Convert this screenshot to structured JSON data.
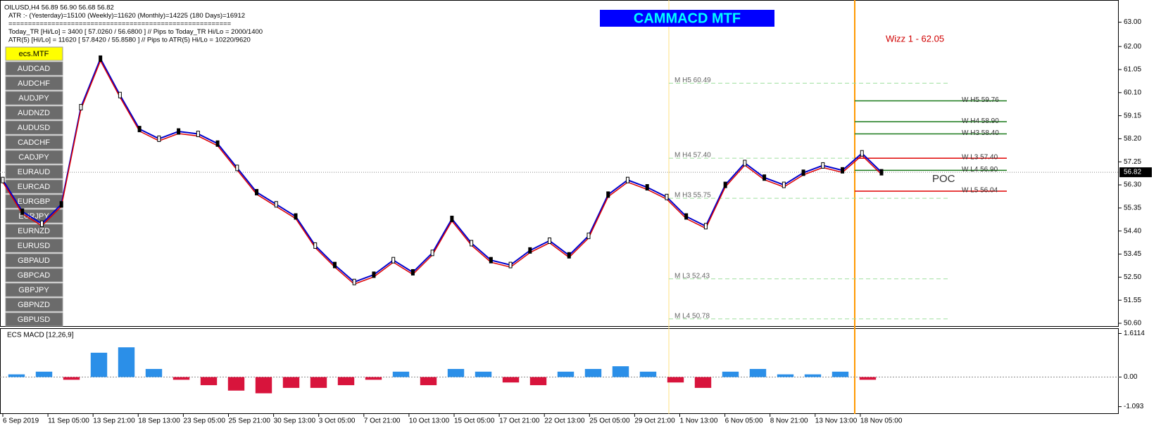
{
  "header": {
    "lines": [
      "OILUSD,H4  56.89 56.90 56.68 56.82",
      "ATR :- (Yesterday)=15100       (Weekly)=11620      (Monthly)=14225      (180 Days)=16912",
      "=========================================================",
      "Today_TR [Hi/Lo] = 3400  [ 57.0260 / 56.6800 ]   //  Pips to Today_TR Hi/Lo  =  2000/1400",
      "ATR(5)      [Hi/Lo] = 11620  [ 57.8420 / 55.8580 ]  //  Pips to ATR(5) Hi/Lo      =  10220/9620"
    ],
    "title": "CAMMACD MTF",
    "annotation": "Wizz 1 - 62.05"
  },
  "symbols": [
    "ecs.MTF",
    "AUDCAD",
    "AUDCHF",
    "AUDJPY",
    "AUDNZD",
    "AUDUSD",
    "CADCHF",
    "CADJPY",
    "EURAUD",
    "EURCAD",
    "EURGBP",
    "EURJPY",
    "EURNZD",
    "EURUSD",
    "GBPAUD",
    "GBPCAD",
    "GBPJPY",
    "GBPNZD",
    "GBPUSD"
  ],
  "price_axis": {
    "ticks": [
      {
        "value": 63.0,
        "label": "63.00"
      },
      {
        "value": 62.0,
        "label": "62.00"
      },
      {
        "value": 61.05,
        "label": "61.05"
      },
      {
        "value": 60.1,
        "label": "60.10"
      },
      {
        "value": 59.15,
        "label": "59.15"
      },
      {
        "value": 58.2,
        "label": "58.20"
      },
      {
        "value": 57.25,
        "label": "57.25"
      },
      {
        "value": 56.3,
        "label": "56.30"
      },
      {
        "value": 55.35,
        "label": "55.35"
      },
      {
        "value": 54.4,
        "label": "54.40"
      },
      {
        "value": 53.45,
        "label": "53.45"
      },
      {
        "value": 52.5,
        "label": "52.50"
      },
      {
        "value": 51.55,
        "label": "51.55"
      },
      {
        "value": 50.6,
        "label": "50.60"
      }
    ],
    "current": 56.82
  },
  "prices": [
    56.5,
    55.2,
    54.7,
    55.5,
    59.5,
    61.5,
    60.0,
    58.6,
    58.2,
    58.5,
    58.4,
    58.0,
    57.0,
    56.0,
    55.5,
    55.0,
    53.8,
    53.0,
    52.3,
    52.6,
    53.2,
    52.7,
    53.5,
    54.9,
    53.9,
    53.2,
    53.0,
    53.6,
    54.0,
    53.4,
    54.2,
    55.9,
    56.5,
    56.2,
    55.8,
    55.0,
    54.6,
    56.3,
    57.2,
    56.6,
    56.3,
    56.8,
    57.1,
    56.9,
    57.6,
    56.82
  ],
  "levels": [
    {
      "label": "M H5 60.49",
      "price": 60.49,
      "kind": "M"
    },
    {
      "label": "M H4 57.40",
      "price": 57.4,
      "kind": "M"
    },
    {
      "label": "M H3 55.75",
      "price": 55.75,
      "kind": "M"
    },
    {
      "label": "M L3 52.43",
      "price": 52.43,
      "kind": "M"
    },
    {
      "label": "M L4 50.78",
      "price": 50.78,
      "kind": "M"
    },
    {
      "label": "W H5 59.76",
      "price": 59.76,
      "kind": "W",
      "color": "#1a7a1a"
    },
    {
      "label": "W H4 58.90",
      "price": 58.9,
      "kind": "W",
      "color": "#1a7a1a"
    },
    {
      "label": "W H3 58.40",
      "price": 58.4,
      "kind": "W",
      "color": "#1a7a1a"
    },
    {
      "label": "W L3 57.40",
      "price": 57.4,
      "kind": "W",
      "color": "#e00000"
    },
    {
      "label": "W L4 56.90",
      "price": 56.9,
      "kind": "W",
      "color": "#1a7a1a"
    },
    {
      "label": "W L5 56.04",
      "price": 56.04,
      "kind": "W",
      "color": "#e00000"
    }
  ],
  "poc": "POC",
  "macd": {
    "title": "ECS MACD [12,26,9]",
    "ticks": [
      {
        "value": 1.6114,
        "label": "1.6114"
      },
      {
        "value": 0,
        "label": "0.00"
      },
      {
        "value": -1.093,
        "label": "-1.093"
      }
    ],
    "histogram": [
      0.1,
      0.2,
      -0.1,
      0.9,
      1.1,
      0.3,
      -0.1,
      -0.3,
      -0.5,
      -0.6,
      -0.4,
      -0.4,
      -0.3,
      -0.1,
      0.2,
      -0.3,
      0.3,
      0.2,
      -0.2,
      -0.3,
      0.2,
      0.3,
      0.4,
      0.2,
      -0.2,
      -0.4,
      0.2,
      0.3,
      0.1,
      0.1,
      0.2,
      -0.1
    ]
  },
  "time_axis": [
    "6 Sep 2019",
    "11 Sep 05:00",
    "13 Sep 21:00",
    "18 Sep 13:00",
    "23 Sep 05:00",
    "25 Sep 21:00",
    "30 Sep 13:00",
    "3 Oct 05:00",
    "7 Oct 21:00",
    "10 Oct 13:00",
    "15 Oct 05:00",
    "17 Oct 21:00",
    "22 Oct 13:00",
    "25 Oct 05:00",
    "29 Oct 21:00",
    "1 Nov 13:00",
    "6 Nov 05:00",
    "8 Nov 21:00",
    "13 Nov 13:00",
    "18 Nov 05:00"
  ]
}
